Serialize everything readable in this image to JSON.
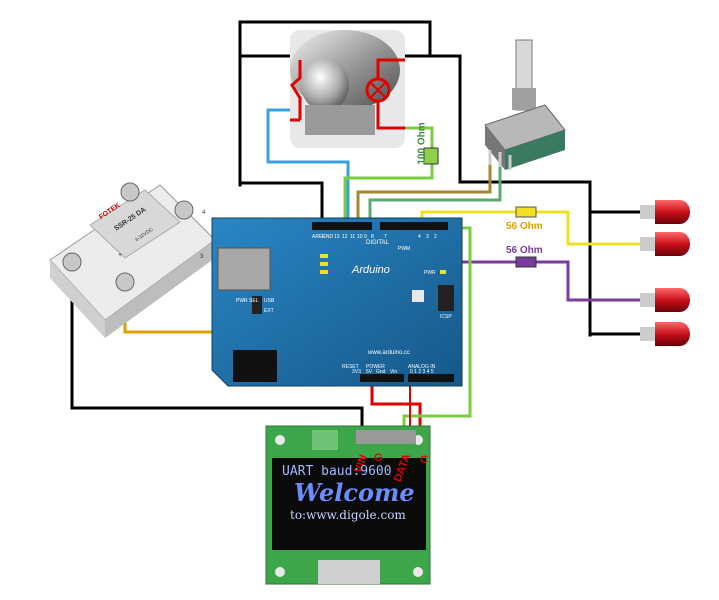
{
  "arduino": {
    "brand": "Arduino",
    "url": "www.arduino.cc",
    "digital_label": "DIGITAL",
    "analog_label": "ANALOG IN",
    "power_label": "POWER",
    "aref": "AREF",
    "gnd": "GND",
    "reset": "RESET",
    "v33": "3V3",
    "v5": "5V",
    "gnd2": "Gnd",
    "vin": "Vin",
    "pwr": "PWR",
    "icsp": "ICSP",
    "pwr_sel": "PWR SEL",
    "usb": "USB",
    "ext": "EXT",
    "pin_13": "13",
    "pin_12": "12",
    "pin_11": "11",
    "pin_10": "10",
    "pin_9": "9",
    "pin_8": "8",
    "pin_7": "7",
    "pin_4": "4",
    "pin_3": "3",
    "pin_2": "2",
    "analog_pins": "0 1 2 3 4 5",
    "pwm": "PWM"
  },
  "relay": {
    "brand": "FOTEK",
    "model": "SSR-25 DA",
    "input": "3-32VDC",
    "pin_plus": "+",
    "pin_3": "3",
    "pin_4": "4"
  },
  "resistors": {
    "r100": "100 Ohm",
    "r56_yellow": "56 Ohm",
    "r56_purple": "56 Ohm"
  },
  "oled": {
    "pin_vin": "VIN",
    "pin_gnd": "G",
    "pin_data": "DATA",
    "pin_c": "C",
    "line1": "UART baud:9600",
    "line2": "Welcome",
    "line3": "to:www.digole.com"
  },
  "colors": {
    "wire_black": "#000000",
    "wire_red": "#e00000",
    "wire_blue": "#3aa0e0",
    "wire_green": "#7acc40",
    "wire_yellow": "#f0e020",
    "wire_orange": "#e0a000",
    "wire_purple": "#7a3c9c",
    "wire_olive": "#a08a30",
    "board_blue": "#1d6fa8",
    "led_red": "#c8101a",
    "oled_green": "#3ea64a",
    "label_red": "#e00000",
    "resistor_label": "#e0a000",
    "resistor_purple": "#7a3c9c"
  }
}
